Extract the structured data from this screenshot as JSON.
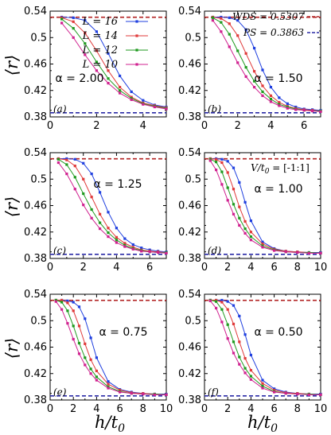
{
  "figure": {
    "ylabel": "⟨r⟩",
    "xlabel": "h/t0",
    "xlabel_main": "h/t",
    "xlabel_sub": "0",
    "wds_label": "WDS = 0.5307",
    "ps_label": "PS = 0.3863",
    "v_label": "V/t0 = [-1:1]",
    "v_label_main": "V/t",
    "v_label_sub": "0",
    "v_label_rest": " = [-1:1]"
  },
  "colors": {
    "L16": "#1f3fdf",
    "L14": "#e03a3a",
    "L12": "#1f9a1f",
    "L10": "#d0208f",
    "wds": "#b22222",
    "ps": "#2a2aa6"
  },
  "chart_data": [
    {
      "type": "line",
      "panel": "(a)",
      "annotation": "α = 2.00",
      "xlim": [
        0,
        5
      ],
      "ylim": [
        0.38,
        0.54
      ],
      "xticks": [
        "0",
        "2",
        "4"
      ],
      "yticks": [
        "0.38",
        "0.42",
        "0.46",
        "0.5",
        "0.54"
      ],
      "reference_lines": [
        {
          "y": 0.5307,
          "style": "dashed"
        },
        {
          "y": 0.3863,
          "style": "dashed"
        }
      ],
      "series": [
        {
          "name": "L = 16",
          "x": [
            0.5,
            1.0,
            1.5,
            2.0,
            2.5,
            3.0,
            3.5,
            4.0,
            4.5,
            5.0
          ],
          "values": [
            0.531,
            0.53,
            0.526,
            0.509,
            0.476,
            0.442,
            0.418,
            0.405,
            0.398,
            0.395
          ]
        },
        {
          "name": "L = 14",
          "x": [
            0.5,
            1.0,
            1.5,
            2.0,
            2.5,
            3.0,
            3.5,
            4.0,
            4.5,
            5.0
          ],
          "values": [
            0.53,
            0.524,
            0.507,
            0.48,
            0.45,
            0.425,
            0.41,
            0.401,
            0.397,
            0.394
          ]
        },
        {
          "name": "L = 12",
          "x": [
            0.5,
            1.0,
            1.5,
            2.0,
            2.5,
            3.0,
            3.5,
            4.0,
            4.5,
            5.0
          ],
          "values": [
            0.528,
            0.514,
            0.491,
            0.463,
            0.438,
            0.42,
            0.408,
            0.4,
            0.396,
            0.393
          ]
        },
        {
          "name": "L = 10",
          "x": [
            0.5,
            1.0,
            1.5,
            2.0,
            2.5,
            3.0,
            3.5,
            4.0,
            4.5,
            5.0
          ],
          "values": [
            0.522,
            0.5,
            0.474,
            0.45,
            0.431,
            0.416,
            0.406,
            0.399,
            0.395,
            0.392
          ]
        }
      ]
    },
    {
      "type": "line",
      "panel": "(b)",
      "annotation": "α = 1.50",
      "xlim": [
        0,
        7
      ],
      "ylim": [
        0.38,
        0.54
      ],
      "xticks": [
        "0",
        "2",
        "4",
        "6"
      ],
      "yticks": [
        "0.38",
        "0.42",
        "0.46",
        "0.5",
        "0.54"
      ],
      "reference_lines": [
        {
          "y": 0.5307,
          "style": "dashed"
        },
        {
          "y": 0.3863,
          "style": "dashed"
        }
      ],
      "series": [
        {
          "name": "L = 16",
          "x": [
            0.5,
            1,
            1.5,
            2,
            2.5,
            3,
            3.5,
            4,
            4.5,
            5,
            5.5,
            6,
            6.5,
            7
          ],
          "values": [
            0.531,
            0.531,
            0.53,
            0.526,
            0.512,
            0.484,
            0.451,
            0.425,
            0.409,
            0.4,
            0.395,
            0.392,
            0.391,
            0.39
          ]
        },
        {
          "name": "L = 14",
          "x": [
            0.5,
            1,
            1.5,
            2,
            2.5,
            3,
            3.5,
            4,
            4.5,
            5,
            5.5,
            6,
            6.5,
            7
          ],
          "values": [
            0.531,
            0.529,
            0.521,
            0.503,
            0.476,
            0.449,
            0.427,
            0.412,
            0.402,
            0.396,
            0.393,
            0.391,
            0.39,
            0.389
          ]
        },
        {
          "name": "L = 12",
          "x": [
            0.5,
            1,
            1.5,
            2,
            2.5,
            3,
            3.5,
            4,
            4.5,
            5,
            5.5,
            6,
            6.5,
            7
          ],
          "values": [
            0.53,
            0.523,
            0.505,
            0.48,
            0.455,
            0.434,
            0.418,
            0.407,
            0.399,
            0.395,
            0.392,
            0.39,
            0.389,
            0.389
          ]
        },
        {
          "name": "L = 10",
          "x": [
            0.5,
            1,
            1.5,
            2,
            2.5,
            3,
            3.5,
            4,
            4.5,
            5,
            5.5,
            6,
            6.5,
            7
          ],
          "values": [
            0.526,
            0.509,
            0.486,
            0.462,
            0.441,
            0.425,
            0.412,
            0.403,
            0.397,
            0.393,
            0.391,
            0.39,
            0.389,
            0.388
          ]
        }
      ]
    },
    {
      "type": "line",
      "panel": "(c)",
      "annotation": "α = 1.25",
      "xlim": [
        0,
        7
      ],
      "ylim": [
        0.38,
        0.54
      ],
      "xticks": [
        "0",
        "2",
        "4",
        "6"
      ],
      "yticks": [
        "0.38",
        "0.42",
        "0.46",
        "0.5",
        "0.54"
      ],
      "reference_lines": [
        {
          "y": 0.5307,
          "style": "dashed"
        },
        {
          "y": 0.3863,
          "style": "dashed"
        }
      ],
      "series": [
        {
          "name": "L = 16",
          "x": [
            0.5,
            1,
            1.5,
            2,
            2.5,
            3,
            3.5,
            4,
            4.5,
            5,
            5.5,
            6,
            6.5,
            7
          ],
          "values": [
            0.531,
            0.531,
            0.53,
            0.524,
            0.508,
            0.48,
            0.45,
            0.426,
            0.41,
            0.401,
            0.396,
            0.393,
            0.391,
            0.39
          ]
        },
        {
          "name": "L = 14",
          "x": [
            0.5,
            1,
            1.5,
            2,
            2.5,
            3,
            3.5,
            4,
            4.5,
            5,
            5.5,
            6,
            6.5,
            7
          ],
          "values": [
            0.531,
            0.529,
            0.52,
            0.5,
            0.473,
            0.447,
            0.426,
            0.412,
            0.403,
            0.397,
            0.393,
            0.391,
            0.39,
            0.389
          ]
        },
        {
          "name": "L = 12",
          "x": [
            0.5,
            1,
            1.5,
            2,
            2.5,
            3,
            3.5,
            4,
            4.5,
            5,
            5.5,
            6,
            6.5,
            7
          ],
          "values": [
            0.53,
            0.522,
            0.503,
            0.478,
            0.454,
            0.434,
            0.419,
            0.408,
            0.4,
            0.395,
            0.392,
            0.39,
            0.389,
            0.389
          ]
        },
        {
          "name": "L = 10",
          "x": [
            0.5,
            1,
            1.5,
            2,
            2.5,
            3,
            3.5,
            4,
            4.5,
            5,
            5.5,
            6,
            6.5,
            7
          ],
          "values": [
            0.525,
            0.508,
            0.485,
            0.461,
            0.441,
            0.425,
            0.413,
            0.404,
            0.398,
            0.394,
            0.391,
            0.39,
            0.389,
            0.388
          ]
        }
      ]
    },
    {
      "type": "line",
      "panel": "(d)",
      "annotation": "α = 1.00",
      "xlim": [
        0,
        10
      ],
      "ylim": [
        0.38,
        0.54
      ],
      "xticks": [
        "0",
        "2",
        "4",
        "6",
        "8",
        "10"
      ],
      "yticks": [
        "0.38",
        "0.42",
        "0.46",
        "0.5",
        "0.54"
      ],
      "reference_lines": [
        {
          "y": 0.5307,
          "style": "dashed"
        },
        {
          "y": 0.3863,
          "style": "dashed"
        }
      ],
      "series": [
        {
          "name": "L = 16",
          "x": [
            0.5,
            1,
            1.5,
            2,
            2.5,
            3,
            3.5,
            4,
            5,
            6,
            7,
            8,
            9,
            10
          ],
          "values": [
            0.531,
            0.531,
            0.53,
            0.527,
            0.517,
            0.495,
            0.465,
            0.437,
            0.405,
            0.395,
            0.391,
            0.39,
            0.389,
            0.389
          ]
        },
        {
          "name": "L = 14",
          "x": [
            0.5,
            1,
            1.5,
            2,
            2.5,
            3,
            3.5,
            4,
            5,
            6,
            7,
            8,
            9,
            10
          ],
          "values": [
            0.531,
            0.53,
            0.525,
            0.51,
            0.485,
            0.458,
            0.436,
            0.42,
            0.402,
            0.394,
            0.391,
            0.39,
            0.389,
            0.388
          ]
        },
        {
          "name": "L = 12",
          "x": [
            0.5,
            1,
            1.5,
            2,
            2.5,
            3,
            3.5,
            4,
            5,
            6,
            7,
            8,
            9,
            10
          ],
          "values": [
            0.53,
            0.526,
            0.511,
            0.487,
            0.462,
            0.441,
            0.425,
            0.413,
            0.399,
            0.393,
            0.39,
            0.389,
            0.389,
            0.388
          ]
        },
        {
          "name": "L = 10",
          "x": [
            0.5,
            1,
            1.5,
            2,
            2.5,
            3,
            3.5,
            4,
            5,
            6,
            7,
            8,
            9,
            10
          ],
          "values": [
            0.528,
            0.514,
            0.492,
            0.468,
            0.447,
            0.43,
            0.418,
            0.408,
            0.397,
            0.392,
            0.39,
            0.389,
            0.388,
            0.388
          ]
        }
      ]
    },
    {
      "type": "line",
      "panel": "(e)",
      "annotation": "α = 0.75",
      "xlim": [
        0,
        10
      ],
      "ylim": [
        0.38,
        0.54
      ],
      "xticks": [
        "0",
        "2",
        "4",
        "6",
        "8",
        "10"
      ],
      "yticks": [
        "0.38",
        "0.42",
        "0.46",
        "0.5",
        "0.54"
      ],
      "reference_lines": [
        {
          "y": 0.5307,
          "style": "dashed"
        },
        {
          "y": 0.3863,
          "style": "dashed"
        }
      ],
      "series": [
        {
          "name": "L = 16",
          "x": [
            0.5,
            1,
            1.5,
            2,
            2.5,
            3,
            3.5,
            4,
            5,
            6,
            7,
            8,
            9,
            10
          ],
          "values": [
            0.531,
            0.531,
            0.53,
            0.528,
            0.521,
            0.503,
            0.474,
            0.444,
            0.408,
            0.396,
            0.392,
            0.39,
            0.389,
            0.389
          ]
        },
        {
          "name": "L = 14",
          "x": [
            0.5,
            1,
            1.5,
            2,
            2.5,
            3,
            3.5,
            4,
            5,
            6,
            7,
            8,
            9,
            10
          ],
          "values": [
            0.531,
            0.531,
            0.527,
            0.515,
            0.492,
            0.465,
            0.441,
            0.424,
            0.404,
            0.395,
            0.391,
            0.39,
            0.389,
            0.388
          ]
        },
        {
          "name": "L = 12",
          "x": [
            0.5,
            1,
            1.5,
            2,
            2.5,
            3,
            3.5,
            4,
            5,
            6,
            7,
            8,
            9,
            10
          ],
          "values": [
            0.531,
            0.528,
            0.515,
            0.492,
            0.466,
            0.444,
            0.427,
            0.415,
            0.4,
            0.393,
            0.39,
            0.389,
            0.389,
            0.388
          ]
        },
        {
          "name": "L = 10",
          "x": [
            0.5,
            1,
            1.5,
            2,
            2.5,
            3,
            3.5,
            4,
            5,
            6,
            7,
            8,
            9,
            10
          ],
          "values": [
            0.529,
            0.517,
            0.496,
            0.472,
            0.45,
            0.433,
            0.42,
            0.41,
            0.398,
            0.392,
            0.39,
            0.389,
            0.388,
            0.388
          ]
        }
      ]
    },
    {
      "type": "line",
      "panel": "(f)",
      "annotation": "α = 0.50",
      "xlim": [
        0,
        10
      ],
      "ylim": [
        0.38,
        0.54
      ],
      "xticks": [
        "0",
        "2",
        "4",
        "6",
        "8",
        "10"
      ],
      "yticks": [
        "0.38",
        "0.42",
        "0.46",
        "0.5",
        "0.54"
      ],
      "reference_lines": [
        {
          "y": 0.5307,
          "style": "dashed"
        },
        {
          "y": 0.3863,
          "style": "dashed"
        }
      ],
      "series": [
        {
          "name": "L = 16",
          "x": [
            0.5,
            1,
            1.5,
            2,
            2.5,
            3,
            3.5,
            4,
            5,
            6,
            7,
            8,
            9,
            10
          ],
          "values": [
            0.531,
            0.531,
            0.531,
            0.529,
            0.523,
            0.507,
            0.479,
            0.448,
            0.41,
            0.397,
            0.392,
            0.39,
            0.389,
            0.389
          ]
        },
        {
          "name": "L = 14",
          "x": [
            0.5,
            1,
            1.5,
            2,
            2.5,
            3,
            3.5,
            4,
            5,
            6,
            7,
            8,
            9,
            10
          ],
          "values": [
            0.531,
            0.531,
            0.528,
            0.517,
            0.495,
            0.468,
            0.443,
            0.425,
            0.405,
            0.395,
            0.391,
            0.39,
            0.389,
            0.388
          ]
        },
        {
          "name": "L = 12",
          "x": [
            0.5,
            1,
            1.5,
            2,
            2.5,
            3,
            3.5,
            4,
            5,
            6,
            7,
            8,
            9,
            10
          ],
          "values": [
            0.531,
            0.529,
            0.517,
            0.494,
            0.468,
            0.445,
            0.428,
            0.416,
            0.401,
            0.393,
            0.39,
            0.389,
            0.389,
            0.388
          ]
        },
        {
          "name": "L = 10",
          "x": [
            0.5,
            1,
            1.5,
            2,
            2.5,
            3,
            3.5,
            4,
            5,
            6,
            7,
            8,
            9,
            10
          ],
          "values": [
            0.53,
            0.519,
            0.498,
            0.473,
            0.451,
            0.434,
            0.421,
            0.411,
            0.398,
            0.392,
            0.39,
            0.389,
            0.388,
            0.388
          ]
        }
      ]
    }
  ]
}
